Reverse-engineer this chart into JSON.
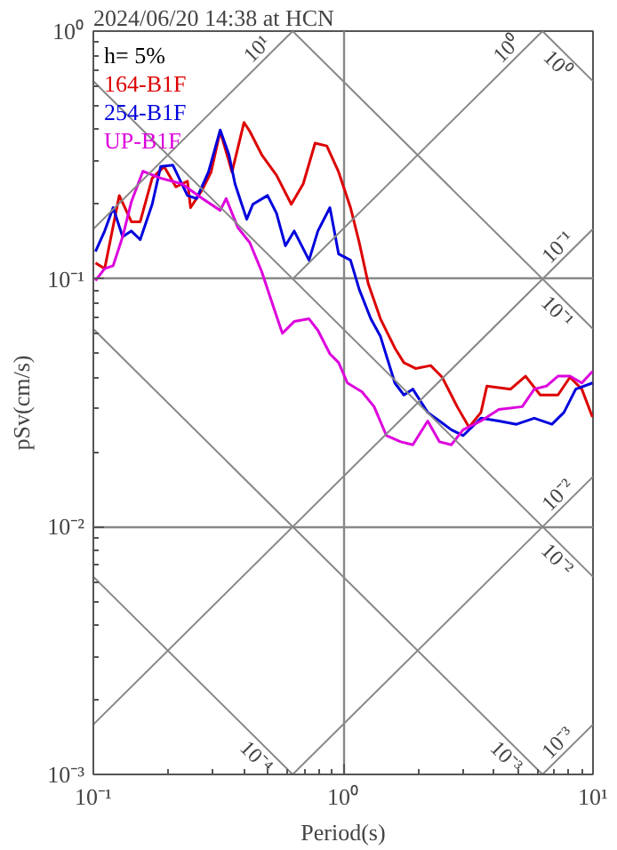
{
  "chart_data": {
    "type": "line",
    "title": "2024/06/20 14:38 at HCN",
    "xlabel": "Period(s)",
    "ylabel": "pSv(cm/s)",
    "legend_title": "h= 5%",
    "legend": "top left",
    "log": "xy",
    "grid": true,
    "xlim": [
      0.1,
      10
    ],
    "ylim": [
      0.001,
      1
    ],
    "xticks": [
      {
        "value": 0.1,
        "label": "10⁻¹"
      },
      {
        "value": 1,
        "label": "10⁰"
      },
      {
        "value": 10,
        "label": "10¹"
      }
    ],
    "yticks": [
      {
        "value": 0.001,
        "label": "10⁻³"
      },
      {
        "value": 0.01,
        "label": "10⁻²"
      },
      {
        "value": 0.1,
        "label": "10⁻¹"
      },
      {
        "value": 1,
        "label": "10⁰"
      }
    ],
    "series": [
      {
        "name": "164-B1F",
        "color": "#dd0000",
        "x": [
          0.102,
          0.111,
          0.127,
          0.142,
          0.154,
          0.172,
          0.192,
          0.214,
          0.238,
          0.245,
          0.273,
          0.296,
          0.322,
          0.359,
          0.401,
          0.423,
          0.472,
          0.541,
          0.62,
          0.692,
          0.772,
          0.86,
          0.959,
          1.07,
          1.16,
          1.26,
          1.41,
          1.61,
          1.75,
          1.95,
          2.24,
          2.49,
          2.86,
          3.19,
          3.56,
          3.76,
          4.68,
          5.37,
          6.15,
          7.24,
          8.09,
          9.02,
          9.95
        ],
        "values": [
          0.116,
          0.11,
          0.217,
          0.17,
          0.17,
          0.255,
          0.284,
          0.235,
          0.248,
          0.194,
          0.229,
          0.27,
          0.394,
          0.27,
          0.428,
          0.394,
          0.317,
          0.262,
          0.2,
          0.242,
          0.353,
          0.344,
          0.27,
          0.194,
          0.14,
          0.0957,
          0.069,
          0.0526,
          0.0459,
          0.0435,
          0.0447,
          0.0401,
          0.0305,
          0.0252,
          0.0289,
          0.0369,
          0.0359,
          0.0405,
          0.034,
          0.034,
          0.0401,
          0.0359,
          0.0277
        ]
      },
      {
        "name": "254-B1F",
        "color": "#0000dd",
        "x": [
          0.102,
          0.111,
          0.12,
          0.131,
          0.142,
          0.154,
          0.172,
          0.186,
          0.208,
          0.238,
          0.259,
          0.289,
          0.322,
          0.349,
          0.369,
          0.411,
          0.435,
          0.498,
          0.541,
          0.587,
          0.637,
          0.73,
          0.792,
          0.885,
          0.959,
          1.07,
          1.16,
          1.29,
          1.41,
          1.61,
          1.75,
          1.9,
          2.18,
          2.43,
          2.71,
          3.02,
          3.56,
          4.2,
          4.94,
          5.82,
          6.85,
          7.65,
          8.53,
          9.95
        ],
        "values": [
          0.129,
          0.156,
          0.194,
          0.148,
          0.156,
          0.144,
          0.2,
          0.284,
          0.288,
          0.217,
          0.211,
          0.27,
          0.399,
          0.317,
          0.242,
          0.174,
          0.2,
          0.217,
          0.184,
          0.136,
          0.156,
          0.119,
          0.156,
          0.194,
          0.126,
          0.119,
          0.0906,
          0.069,
          0.0586,
          0.038,
          0.034,
          0.0359,
          0.0289,
          0.0267,
          0.0246,
          0.0233,
          0.0274,
          0.0267,
          0.0259,
          0.0274,
          0.0259,
          0.0289,
          0.0359,
          0.038
        ]
      },
      {
        "name": "UP-B1F",
        "color": "#dd00dd",
        "x": [
          0.102,
          0.111,
          0.12,
          0.131,
          0.142,
          0.158,
          0.186,
          0.226,
          0.273,
          0.322,
          0.34,
          0.379,
          0.423,
          0.472,
          0.526,
          0.571,
          0.637,
          0.73,
          0.792,
          0.885,
          0.959,
          1.04,
          1.19,
          1.33,
          1.49,
          1.7,
          1.9,
          2.18,
          2.43,
          2.71,
          3.02,
          3.56,
          4.2,
          5.21,
          5.82,
          6.5,
          7.24,
          8.09,
          9.02,
          9.95
        ],
        "values": [
          0.0984,
          0.11,
          0.113,
          0.148,
          0.205,
          0.272,
          0.255,
          0.242,
          0.211,
          0.189,
          0.211,
          0.161,
          0.14,
          0.107,
          0.077,
          0.0603,
          0.0673,
          0.069,
          0.062,
          0.0498,
          0.0459,
          0.038,
          0.035,
          0.0305,
          0.0233,
          0.022,
          0.0214,
          0.0267,
          0.022,
          0.0214,
          0.0246,
          0.0267,
          0.0297,
          0.0305,
          0.0359,
          0.0369,
          0.0405,
          0.0405,
          0.038,
          0.0423
        ]
      },
      {
        "color": "#888888",
        "x": [
          0.1,
          0.628
        ],
        "values": [
          0.159,
          1
        ]
      },
      {
        "color": "#888888",
        "x": [
          0.628,
          6.28
        ],
        "values": [
          0.1,
          1
        ]
      },
      {
        "color": "#888888",
        "x": [
          6.28,
          10
        ],
        "values": [
          1,
          0.628
        ]
      },
      {
        "color": "#888888",
        "x": [
          0.1,
          10
        ],
        "values": [
          0.00159,
          0.159
        ]
      },
      {
        "color": "#888888",
        "x": [
          0.628,
          10
        ],
        "values": [
          1,
          0.0628
        ]
      },
      {
        "color": "#888888",
        "x": [
          0.628,
          10
        ],
        "values": [
          0.001,
          0.0159
        ]
      },
      {
        "color": "#888888",
        "x": [
          0.1,
          10
        ],
        "values": [
          0.628,
          0.00628
        ]
      },
      {
        "color": "#888888",
        "x": [
          0.1,
          6.28
        ],
        "values": [
          0.0628,
          0.001
        ]
      },
      {
        "color": "#888888",
        "x": [
          6.28,
          10
        ],
        "values": [
          0.001,
          0.00159
        ]
      },
      {
        "color": "#888888",
        "x": [
          0.1,
          0.628
        ],
        "values": [
          0.00628,
          0.001
        ]
      }
    ],
    "annotations": [
      {
        "text": "10¹",
        "x": 0.489,
        "y": 0.782
      },
      {
        "text": "10⁰",
        "x": 4.89,
        "y": 0.782
      },
      {
        "text": "10⁰",
        "x": 7.82,
        "y": 0.803
      },
      {
        "text": "10⁻¹",
        "x": 7.82,
        "y": 0.124
      },
      {
        "text": "10⁻¹",
        "x": 7.82,
        "y": 0.0803
      },
      {
        "text": "10⁻²",
        "x": 7.82,
        "y": 0.0124
      },
      {
        "text": "10⁻²",
        "x": 7.82,
        "y": 0.00803
      },
      {
        "text": "10⁻³",
        "x": 4.89,
        "y": 0.00128
      },
      {
        "text": "10⁻³",
        "x": 7.82,
        "y": 0.00124
      },
      {
        "text": "10⁻⁴",
        "x": 0.489,
        "y": 0.00128
      }
    ]
  }
}
